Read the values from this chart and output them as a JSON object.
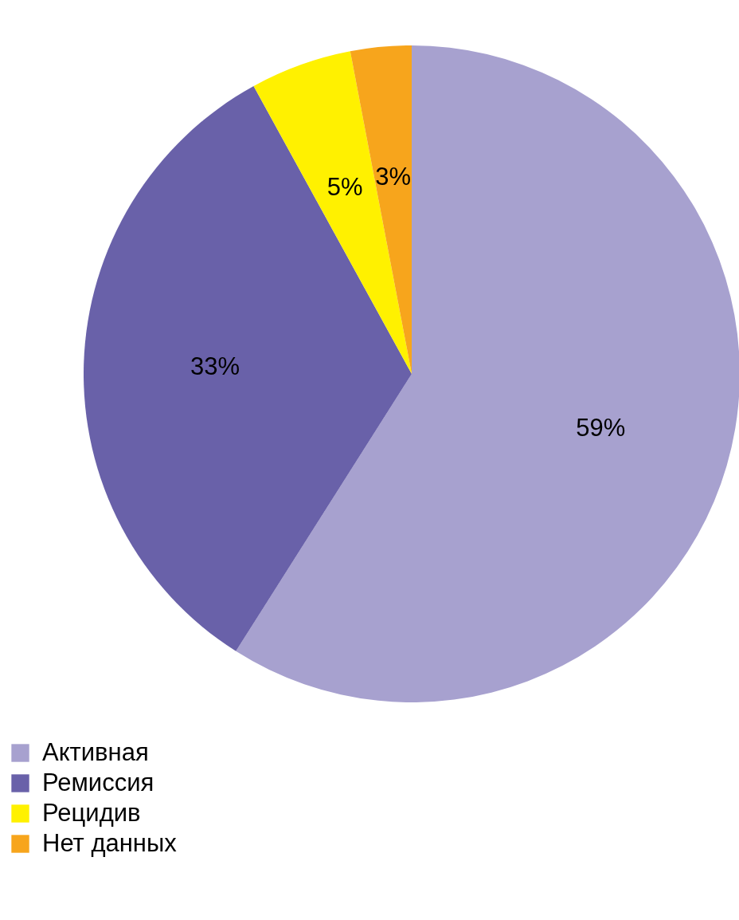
{
  "chart_data": {
    "type": "pie",
    "categories": [
      "Активная",
      "Ремиссия",
      "Рецидив",
      "Нет данных"
    ],
    "values": [
      59,
      33,
      5,
      3
    ],
    "colors": [
      "#a7a1cf",
      "#6961a9",
      "#fff100",
      "#f7a51c"
    ],
    "value_labels": [
      "59%",
      "33%",
      "5%",
      "3%"
    ],
    "legend": "bottom left"
  }
}
